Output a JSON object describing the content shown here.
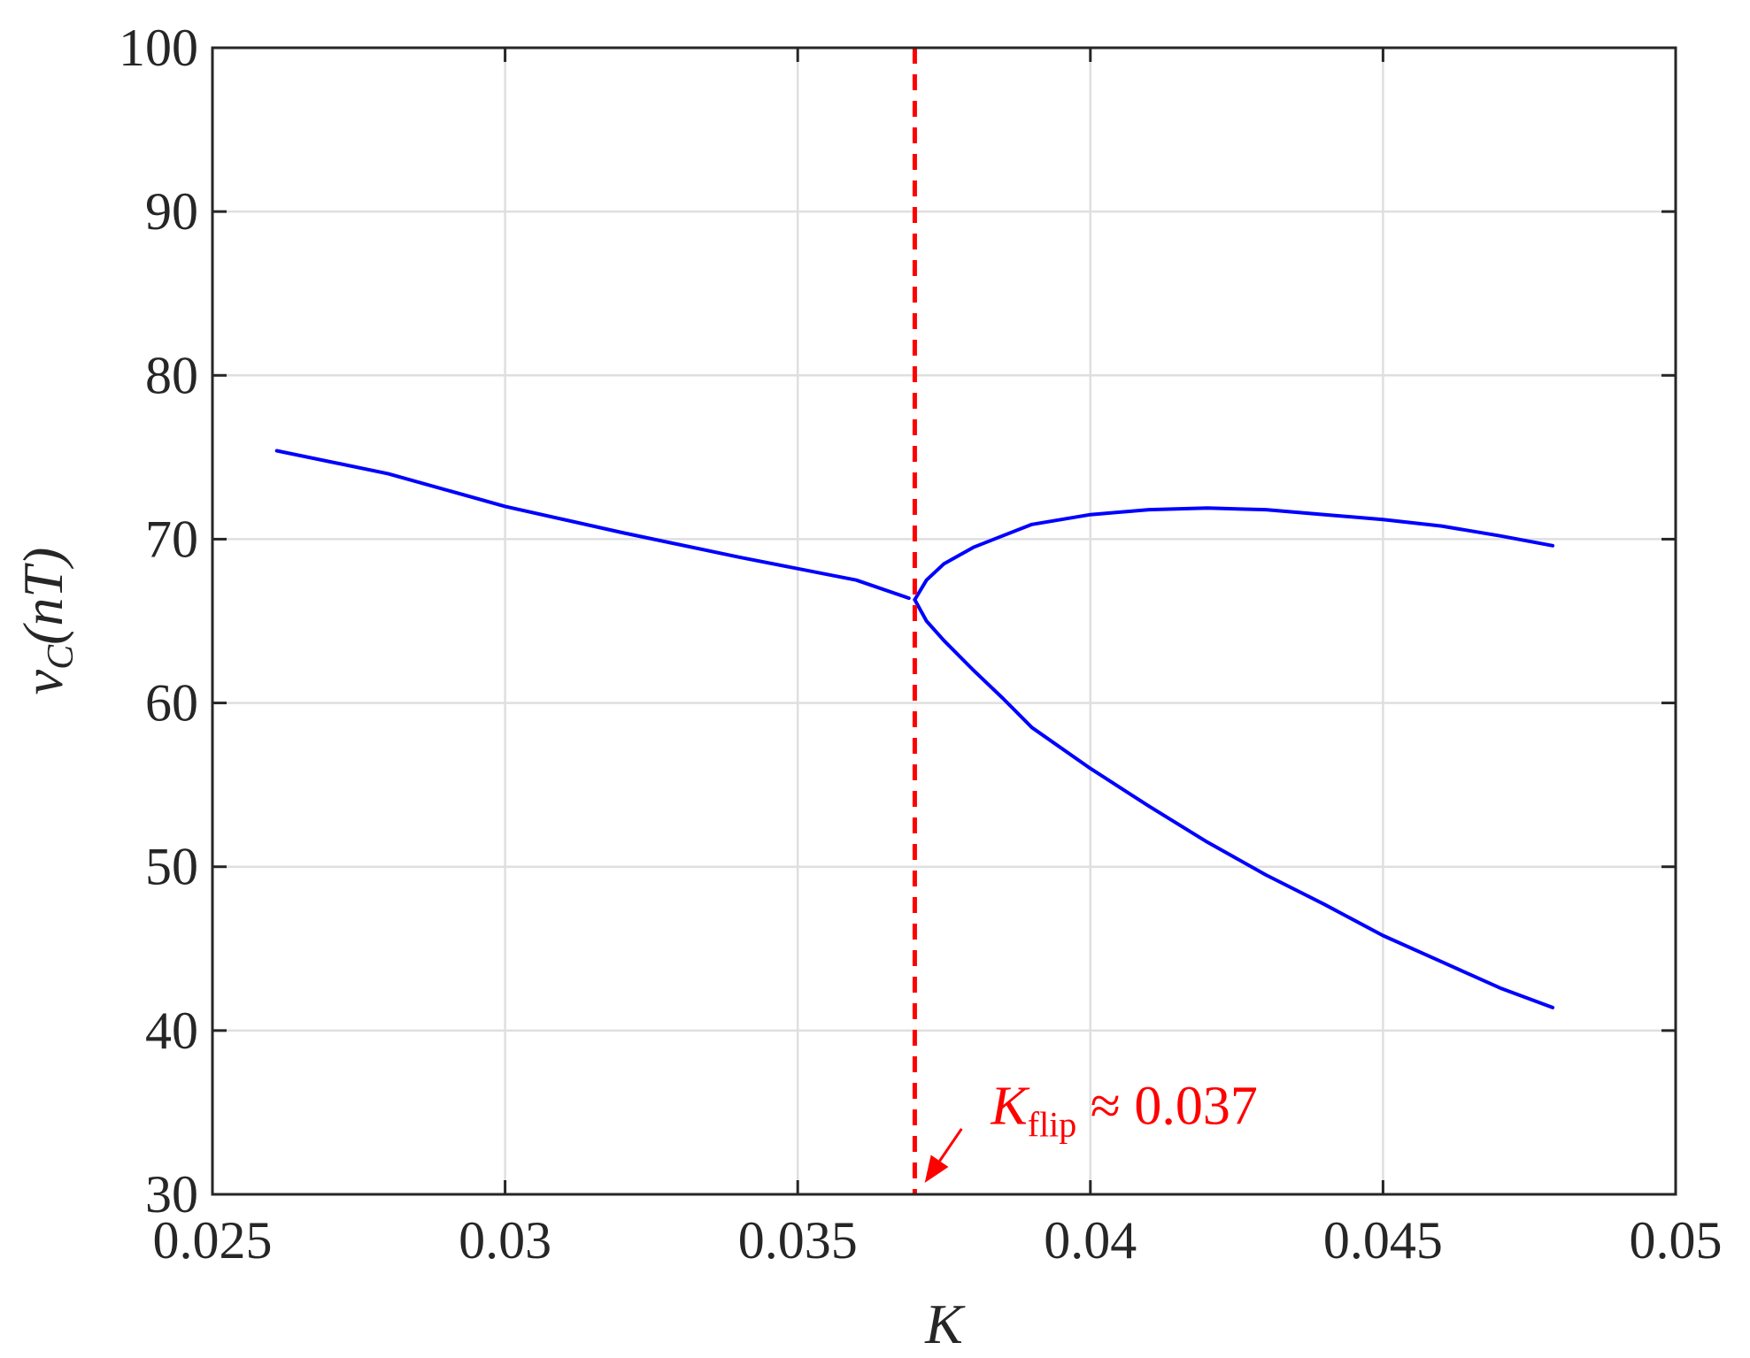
{
  "chart_data": {
    "type": "line",
    "title": "",
    "xlabel": "K",
    "ylabel": {
      "main": "v",
      "sub": "C",
      "rest": "(nT)"
    },
    "xlim": [
      0.025,
      0.05
    ],
    "ylim": [
      30,
      100
    ],
    "xticks": [
      0.025,
      0.03,
      0.035,
      0.04,
      0.045,
      0.05
    ],
    "xtick_labels": [
      "0.025",
      "0.03",
      "0.035",
      "0.04",
      "0.045",
      "0.05"
    ],
    "yticks": [
      30,
      40,
      50,
      60,
      70,
      80,
      90,
      100
    ],
    "ytick_labels": [
      "30",
      "40",
      "50",
      "60",
      "70",
      "80",
      "90",
      "100"
    ],
    "grid": true,
    "series": [
      {
        "color": "#0000ff",
        "x": [
          0.0261,
          0.028,
          0.03,
          0.032,
          0.034,
          0.036,
          0.0369
        ],
        "y": [
          75.4,
          74.0,
          72.0,
          70.4,
          68.9,
          67.5,
          66.4
        ]
      },
      {
        "color": "#0000ff",
        "x": [
          0.037,
          0.0372,
          0.0375,
          0.038,
          0.0385,
          0.039,
          0.04,
          0.041,
          0.042,
          0.043,
          0.044,
          0.045,
          0.046,
          0.047,
          0.0479
        ],
        "y": [
          66.3,
          67.5,
          68.5,
          69.5,
          70.2,
          70.9,
          71.5,
          71.8,
          71.9,
          71.8,
          71.5,
          71.2,
          70.8,
          70.2,
          69.6
        ]
      },
      {
        "color": "#0000ff",
        "x": [
          0.037,
          0.0372,
          0.0375,
          0.038,
          0.0385,
          0.039,
          0.04,
          0.041,
          0.042,
          0.043,
          0.044,
          0.045,
          0.046,
          0.047,
          0.0479
        ],
        "y": [
          66.3,
          65.0,
          63.8,
          62.0,
          60.3,
          58.5,
          56.0,
          53.7,
          51.5,
          49.5,
          47.7,
          45.8,
          44.2,
          42.6,
          41.4
        ]
      }
    ],
    "vline": {
      "x": 0.037,
      "color": "#ff0000",
      "style": "dashed"
    },
    "annotation": {
      "main": "K",
      "sub": "flip",
      "rest": " ≈ 0.037",
      "color": "#ff0000",
      "text_x": 0.0383,
      "text_y": 34.3,
      "arrow_from": [
        0.0378,
        34.0
      ],
      "arrow_to": [
        0.03717,
        30.7
      ]
    }
  }
}
